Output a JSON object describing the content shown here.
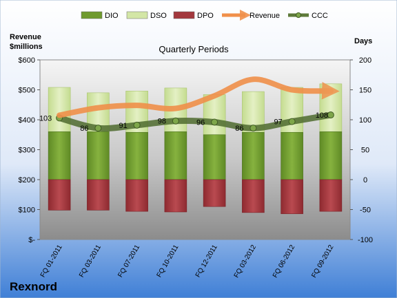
{
  "chart_data": {
    "type": "bar",
    "title": "Quarterly Periods",
    "company": "Rexnord",
    "left_axis_label": [
      "Revenue",
      "$millions"
    ],
    "right_axis_label": "Days",
    "left_ticks": [
      "$-",
      "$100",
      "$200",
      "$300",
      "$400",
      "$500",
      "$600"
    ],
    "right_ticks": [
      "-100",
      "-50",
      "0",
      "50",
      "100",
      "150",
      "200"
    ],
    "left_ylim": [
      0,
      600
    ],
    "right_ylim": [
      -100,
      200
    ],
    "categories": [
      "FQ 01-2011",
      "FQ 03-2011",
      "FQ 07-2011",
      "FQ 10-2011",
      "FQ 12-2011",
      "FQ 03-2012",
      "FQ 06-2012",
      "FQ 09-2012"
    ],
    "legend": [
      {
        "name": "DIO",
        "color": "#6f9a2e"
      },
      {
        "name": "DSO",
        "color": "#d3e6a6"
      },
      {
        "name": "DPO",
        "color": "#a3383d"
      },
      {
        "name": "Revenue",
        "color": "#f0904a"
      },
      {
        "name": "CCC",
        "color": "#5e7a3a"
      }
    ],
    "series": [
      {
        "name": "DIO",
        "axis": "right",
        "values": [
          80,
          80,
          79,
          80,
          75,
          79,
          79,
          80
        ]
      },
      {
        "name": "DSO",
        "axis": "right",
        "values": [
          74,
          65,
          69,
          73,
          67,
          68,
          75,
          80
        ]
      },
      {
        "name": "DPO",
        "axis": "right",
        "values": [
          -51,
          -51,
          -53,
          -54,
          -45,
          -55,
          -57,
          -53
        ]
      },
      {
        "name": "Revenue",
        "axis": "left",
        "values": [
          415,
          440,
          448,
          438,
          480,
          535,
          500,
          496
        ]
      },
      {
        "name": "CCC",
        "axis": "right",
        "values": [
          103,
          86,
          91,
          98,
          96,
          86,
          97,
          108
        ]
      }
    ],
    "ccc_labels": [
      "103",
      "86",
      "91",
      "98",
      "96",
      "86",
      "97",
      "108"
    ],
    "legend_placement": "top",
    "grid": false
  }
}
